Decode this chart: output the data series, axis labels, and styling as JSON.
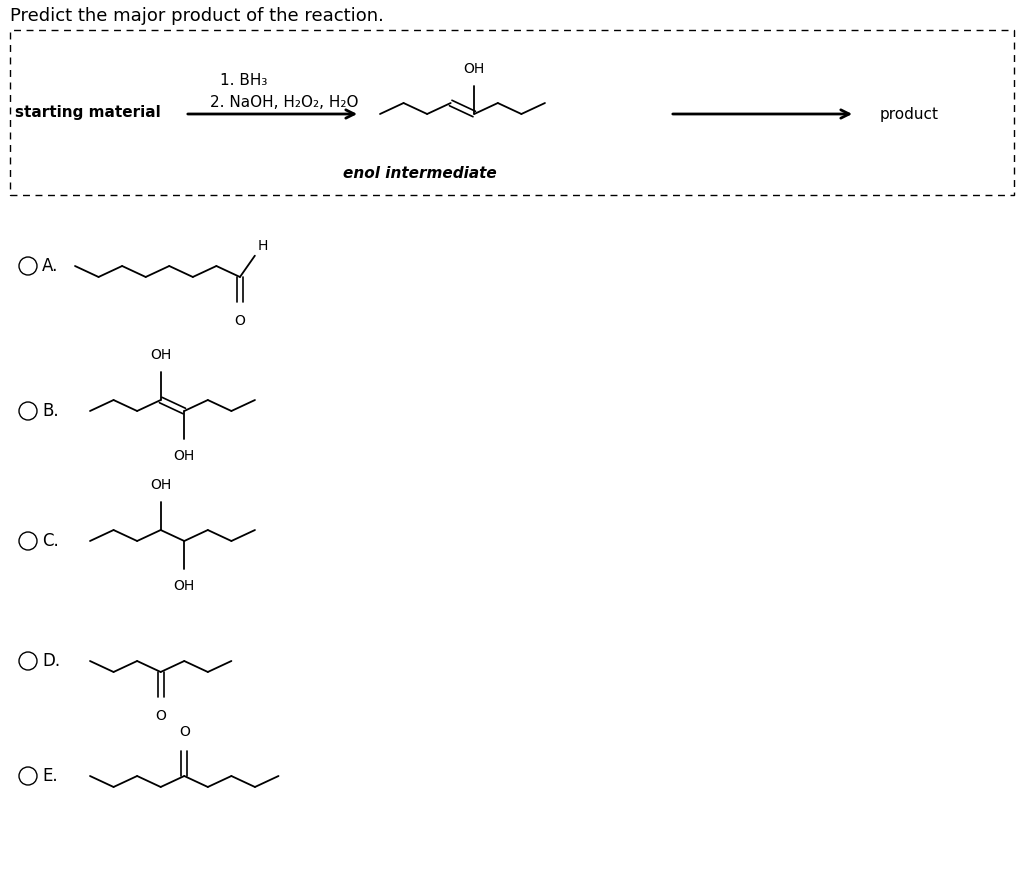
{
  "title": "Predict the major product of the reaction.",
  "background_color": "#ffffff",
  "text_color": "#000000",
  "box_label_left": "starting material",
  "box_label_right": "product",
  "reagent_line1": "1. BH₃",
  "reagent_line2": "2. NaOH, H₂O₂, H₂O",
  "enol_label": "enol intermediate",
  "choices": [
    "A.",
    "B.",
    "C.",
    "D.",
    "E."
  ],
  "font_size_title": 13,
  "font_size_labels": 11,
  "font_size_choices": 12,
  "font_size_chem": 10
}
